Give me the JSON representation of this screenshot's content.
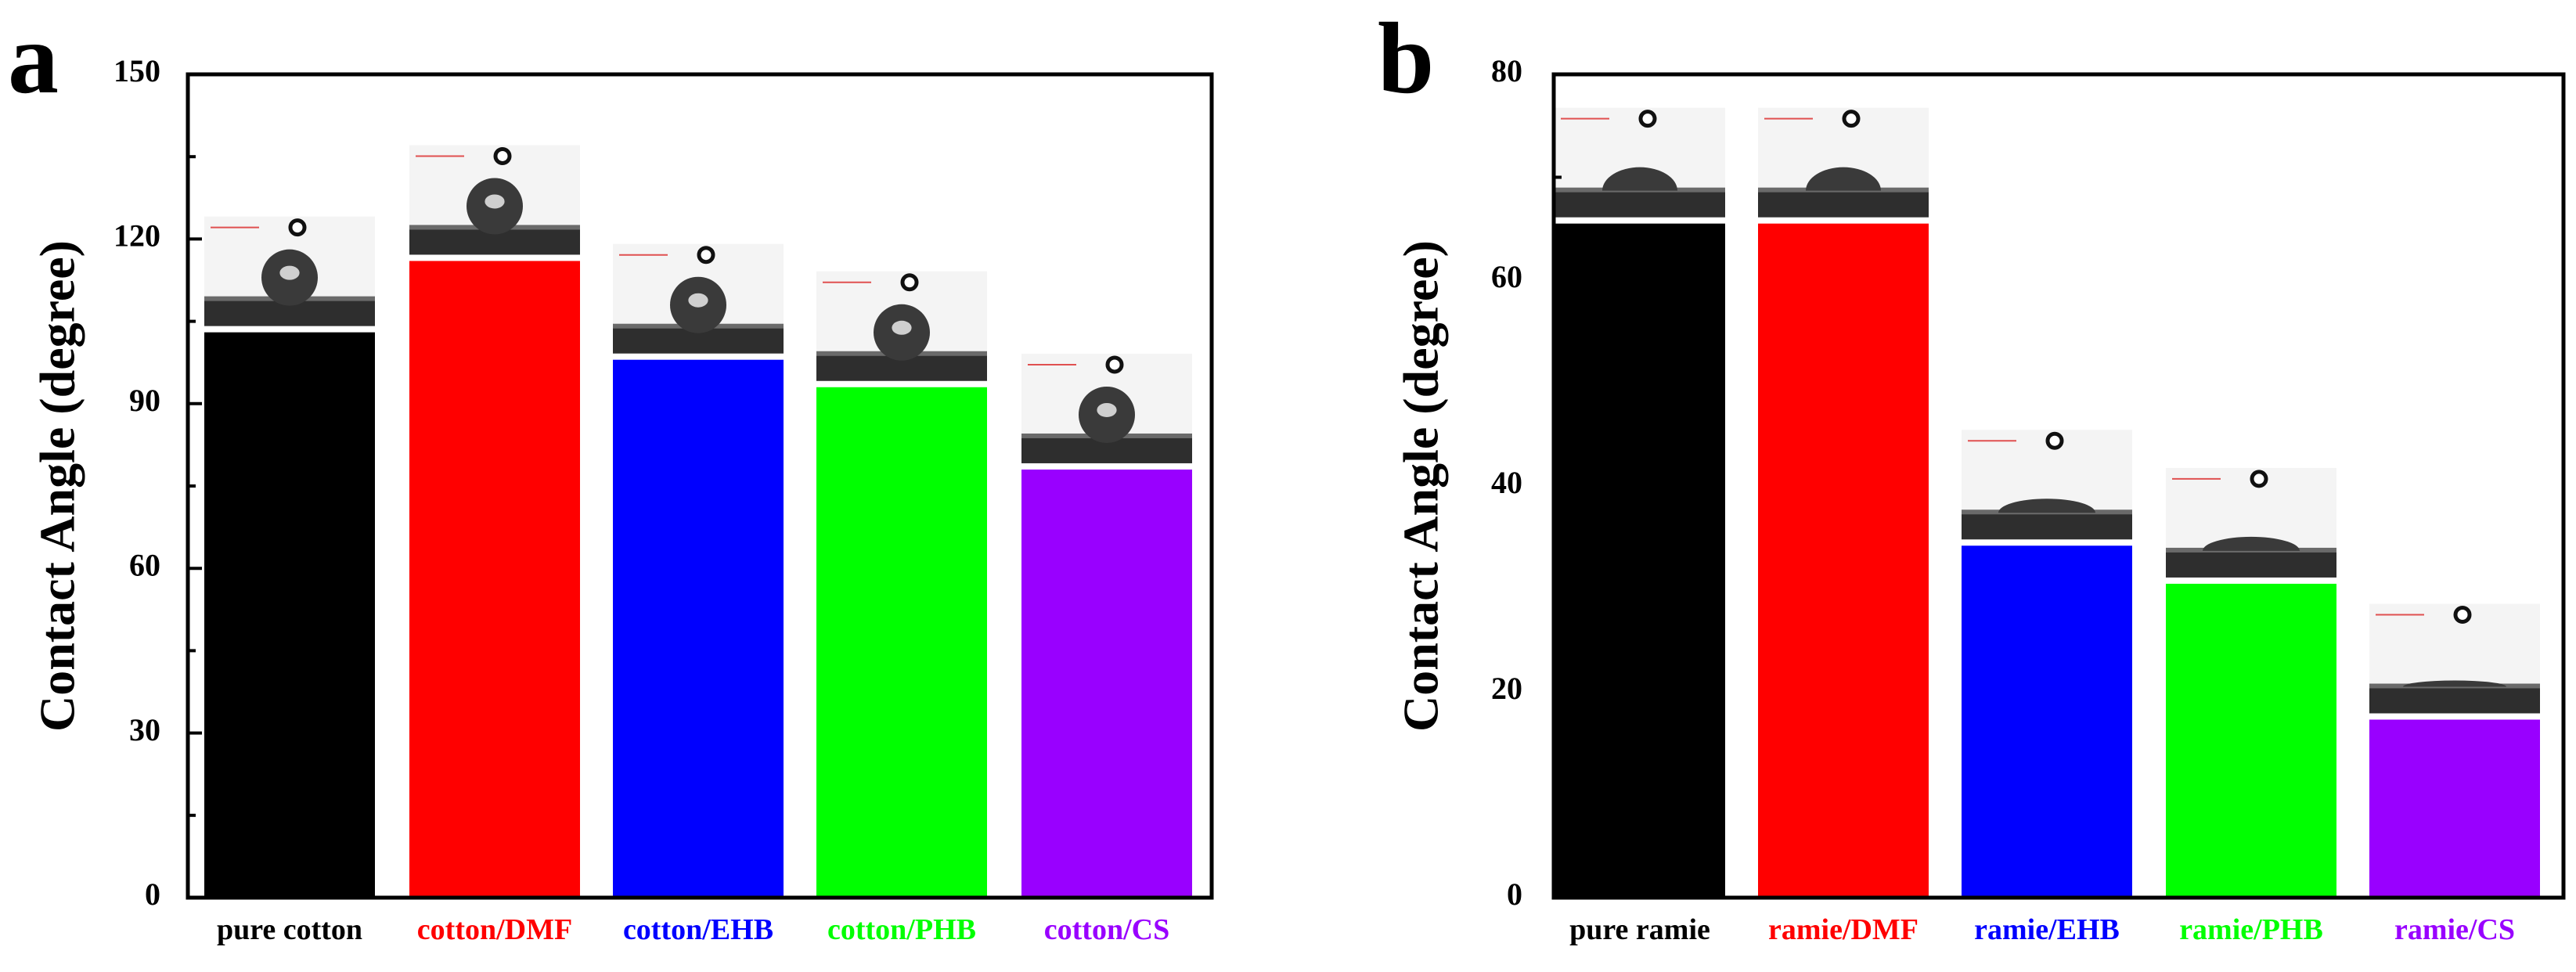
{
  "chart_data": [
    {
      "panel_label": "a",
      "type": "bar",
      "ylabel": "Contact Angle (degree)",
      "xlabel": "",
      "ylim": [
        0,
        150
      ],
      "y_ticks": [
        "0",
        "30",
        "60",
        "90",
        "120",
        "150"
      ],
      "categories": [
        "pure cotton",
        "cotton/DMF",
        "cotton/EHB",
        "cotton/PHB",
        "cotton/CS"
      ],
      "values": [
        103,
        116,
        98,
        93,
        78
      ],
      "bar_colors": [
        "#000000",
        "#ff0000",
        "#0000ff",
        "#00ff00",
        "#9900ff"
      ],
      "label_colors": [
        "#000000",
        "#ff0000",
        "#0000ff",
        "#00ff00",
        "#9900ff"
      ],
      "droplet_shapes": [
        "near-spherical",
        "spherical",
        "spherical",
        "spherical",
        "spherical"
      ],
      "grid": false
    },
    {
      "panel_label": "b",
      "type": "bar",
      "ylabel": "Contact Angle (degree)",
      "xlabel": "",
      "ylim": [
        0,
        80
      ],
      "y_ticks": [
        "0",
        "20",
        "40",
        "60",
        "80"
      ],
      "categories": [
        "pure ramie",
        "ramie/DMF",
        "ramie/EHB",
        "ramie/PHB",
        "ramie/CS"
      ],
      "values": [
        65.5,
        65.5,
        34.2,
        30.5,
        17.3
      ],
      "bar_colors": [
        "#000000",
        "#ff0000",
        "#0000ff",
        "#00ff00",
        "#9900ff"
      ],
      "label_colors": [
        "#000000",
        "#ff0000",
        "#0000ff",
        "#00ff00",
        "#9900ff"
      ],
      "droplet_shapes": [
        "cap",
        "cap",
        "flat-cap",
        "flat-cap",
        "flat"
      ],
      "grid": false
    }
  ]
}
